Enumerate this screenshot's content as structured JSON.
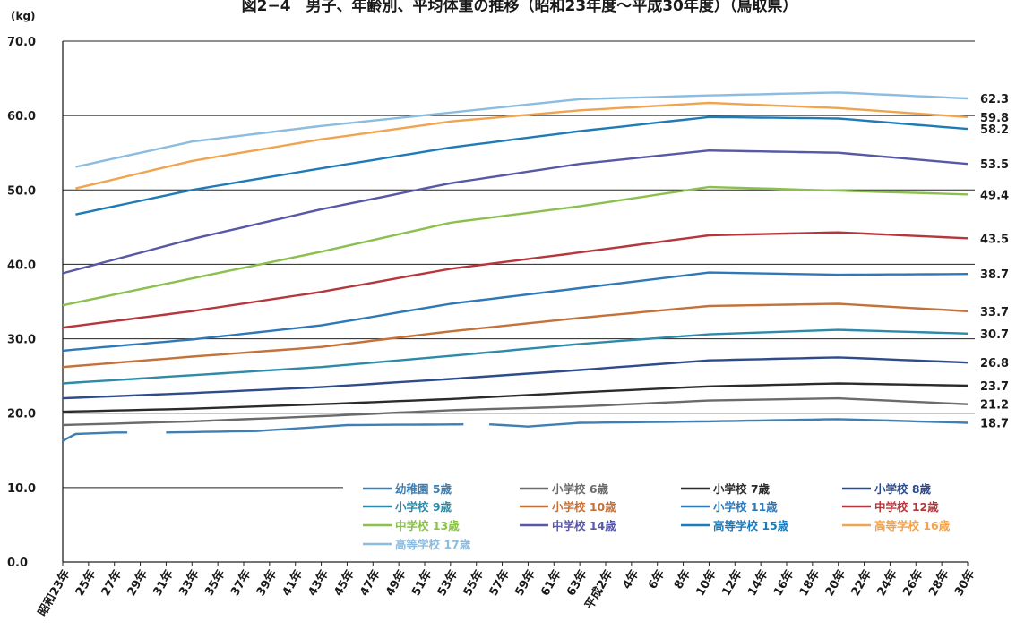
{
  "chart_data": {
    "type": "line",
    "title": "図2−4　男子、年齢別、平均体重の推移（昭和23年度〜平成30年度）（鳥取県）",
    "y_unit": "(kg)",
    "ylim": [
      0,
      70
    ],
    "yticks": [
      "0.0",
      "10.0",
      "20.0",
      "30.0",
      "40.0",
      "50.0",
      "60.0",
      "70.0"
    ],
    "grid": "horizontal lines at 20, 30, 40, 50, 60, 70; partial line at 10",
    "legend_position": "bottom-center inside plot",
    "x_tick_labels": [
      "昭和23年",
      "25年",
      "27年",
      "29年",
      "31年",
      "33年",
      "35年",
      "37年",
      "39年",
      "41年",
      "43年",
      "45年",
      "47年",
      "49年",
      "51年",
      "53年",
      "55年",
      "57年",
      "59年",
      "61年",
      "63年",
      "平成2年",
      "4年",
      "6年",
      "8年",
      "10年",
      "12年",
      "14年",
      "16年",
      "18年",
      "20年",
      "22年",
      "24年",
      "26年",
      "28年",
      "30年"
    ],
    "x_tick_step": 2,
    "n_points": 71,
    "series": [
      {
        "name": "幼稚園 5歳",
        "color": "#3f7fb3",
        "start": 0,
        "knots": [
          [
            0,
            16.3
          ],
          [
            1,
            17.2
          ],
          [
            4,
            17.4
          ],
          [
            6,
            null
          ],
          [
            8,
            17.4
          ],
          [
            15,
            17.6
          ],
          [
            22,
            18.4
          ],
          [
            31,
            18.5
          ],
          [
            32,
            null
          ],
          [
            33,
            18.5
          ],
          [
            36,
            18.2
          ],
          [
            40,
            18.7
          ],
          [
            50,
            18.9
          ],
          [
            60,
            19.2
          ],
          [
            70,
            18.7
          ]
        ],
        "end_label": "18.7"
      },
      {
        "name": "小学校 6歳",
        "color": "#6b6b6b",
        "start": 0,
        "knots": [
          [
            0,
            18.4
          ],
          [
            10,
            18.9
          ],
          [
            20,
            19.6
          ],
          [
            30,
            20.4
          ],
          [
            40,
            20.9
          ],
          [
            50,
            21.7
          ],
          [
            60,
            22.0
          ],
          [
            70,
            21.2
          ]
        ],
        "end_label": "21.2"
      },
      {
        "name": "小学校 7歳",
        "color": "#2b2b2b",
        "start": 0,
        "knots": [
          [
            0,
            20.2
          ],
          [
            10,
            20.6
          ],
          [
            20,
            21.2
          ],
          [
            30,
            21.9
          ],
          [
            40,
            22.8
          ],
          [
            50,
            23.6
          ],
          [
            60,
            24.0
          ],
          [
            70,
            23.7
          ]
        ],
        "end_label": "23.7"
      },
      {
        "name": "小学校 8歳",
        "color": "#2e4b8c",
        "start": 0,
        "knots": [
          [
            0,
            22.0
          ],
          [
            10,
            22.7
          ],
          [
            20,
            23.5
          ],
          [
            30,
            24.6
          ],
          [
            40,
            25.8
          ],
          [
            50,
            27.1
          ],
          [
            60,
            27.5
          ],
          [
            70,
            26.8
          ]
        ],
        "end_label": "26.8"
      },
      {
        "name": "小学校 9歳",
        "color": "#2e8aa8",
        "start": 0,
        "knots": [
          [
            0,
            24.0
          ],
          [
            10,
            25.1
          ],
          [
            20,
            26.2
          ],
          [
            30,
            27.7
          ],
          [
            40,
            29.3
          ],
          [
            50,
            30.6
          ],
          [
            60,
            31.2
          ],
          [
            70,
            30.7
          ]
        ],
        "end_label": "30.7"
      },
      {
        "name": "小学校 10歳",
        "color": "#c4713a",
        "start": 0,
        "knots": [
          [
            0,
            26.2
          ],
          [
            10,
            27.6
          ],
          [
            20,
            28.9
          ],
          [
            30,
            31.0
          ],
          [
            40,
            32.8
          ],
          [
            50,
            34.4
          ],
          [
            60,
            34.7
          ],
          [
            70,
            33.7
          ]
        ],
        "end_label": "33.7"
      },
      {
        "name": "小学校 11歳",
        "color": "#2f78b8",
        "start": 0,
        "knots": [
          [
            0,
            28.4
          ],
          [
            10,
            29.9
          ],
          [
            20,
            31.8
          ],
          [
            30,
            34.7
          ],
          [
            40,
            36.8
          ],
          [
            50,
            38.9
          ],
          [
            60,
            38.6
          ],
          [
            70,
            38.7
          ]
        ],
        "end_label": "38.7"
      },
      {
        "name": "中学校 12歳",
        "color": "#b5373b",
        "start": 0,
        "knots": [
          [
            0,
            31.5
          ],
          [
            10,
            33.7
          ],
          [
            20,
            36.3
          ],
          [
            30,
            39.4
          ],
          [
            40,
            41.6
          ],
          [
            50,
            43.9
          ],
          [
            60,
            44.3
          ],
          [
            70,
            43.5
          ]
        ],
        "end_label": "43.5"
      },
      {
        "name": "中学校 13歳",
        "color": "#8cc04e",
        "start": 0,
        "knots": [
          [
            0,
            34.5
          ],
          [
            10,
            38.1
          ],
          [
            20,
            41.7
          ],
          [
            30,
            45.6
          ],
          [
            40,
            47.8
          ],
          [
            50,
            50.4
          ],
          [
            60,
            49.9
          ],
          [
            70,
            49.4
          ]
        ],
        "end_label": "49.4"
      },
      {
        "name": "中学校 14歳",
        "color": "#5758a6",
        "start": 0,
        "knots": [
          [
            0,
            38.8
          ],
          [
            10,
            43.4
          ],
          [
            20,
            47.4
          ],
          [
            30,
            50.9
          ],
          [
            40,
            53.5
          ],
          [
            50,
            55.3
          ],
          [
            60,
            55.0
          ],
          [
            70,
            53.5
          ]
        ],
        "end_label": "53.5"
      },
      {
        "name": "高等学校 15歳",
        "color": "#1f7ab8",
        "start": 1,
        "knots": [
          [
            1,
            46.7
          ],
          [
            10,
            50.0
          ],
          [
            20,
            52.9
          ],
          [
            30,
            55.7
          ],
          [
            40,
            57.9
          ],
          [
            50,
            59.8
          ],
          [
            60,
            59.6
          ],
          [
            70,
            58.2
          ]
        ],
        "end_label": "58.2"
      },
      {
        "name": "高等学校 16歳",
        "color": "#f0a450",
        "start": 1,
        "knots": [
          [
            1,
            50.2
          ],
          [
            10,
            53.9
          ],
          [
            20,
            56.8
          ],
          [
            30,
            59.2
          ],
          [
            40,
            60.7
          ],
          [
            50,
            61.7
          ],
          [
            60,
            61.0
          ],
          [
            70,
            59.8
          ]
        ],
        "end_label": "59.8"
      },
      {
        "name": "高等学校 17歳",
        "color": "#8cbcdf",
        "start": 1,
        "knots": [
          [
            1,
            53.1
          ],
          [
            10,
            56.5
          ],
          [
            20,
            58.6
          ],
          [
            30,
            60.4
          ],
          [
            40,
            62.2
          ],
          [
            50,
            62.7
          ],
          [
            60,
            63.1
          ],
          [
            70,
            62.3
          ]
        ],
        "end_label": "62.3"
      }
    ]
  }
}
